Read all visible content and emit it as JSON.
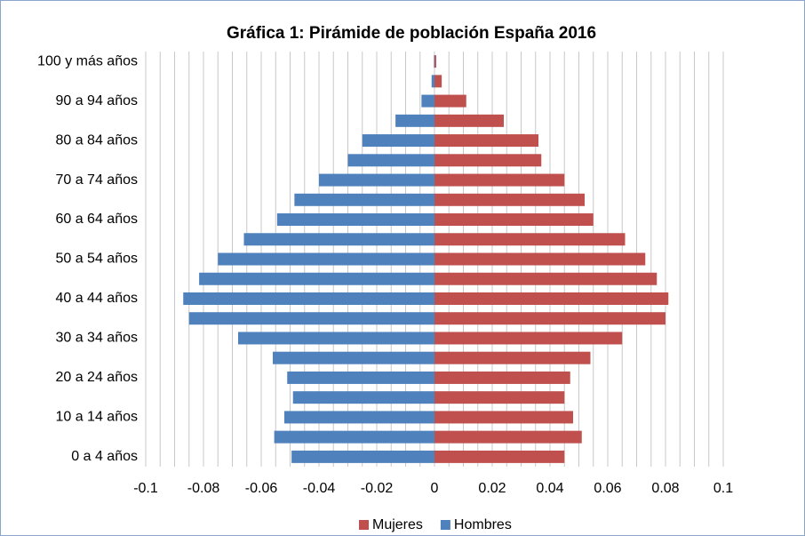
{
  "chart_data": {
    "type": "bar",
    "orientation": "horizontal",
    "title": "Gráfica 1: Pirámide de población España 2016",
    "categories": [
      "0 a 4 años",
      null,
      "10 a 14 años",
      null,
      "20 a 24 años",
      null,
      "30 a 34 años",
      null,
      "40 a 44 años",
      null,
      "50 a 54 años",
      null,
      "60 a 64 años",
      null,
      "70 a 74 años",
      null,
      "80 a 84 años",
      null,
      "90 a 94 años",
      null,
      "100 y más años"
    ],
    "series": [
      {
        "name": "Mujeres",
        "color": "#c0504d",
        "values": [
          0.045,
          0.051,
          0.048,
          0.045,
          0.047,
          0.054,
          0.065,
          0.08,
          0.081,
          0.077,
          0.073,
          0.066,
          0.055,
          0.052,
          0.045,
          0.037,
          0.036,
          0.024,
          0.011,
          0.0025,
          0.0006
        ]
      },
      {
        "name": "Hombres",
        "color": "#4f81bd",
        "values": [
          -0.0495,
          -0.0555,
          -0.052,
          -0.049,
          -0.051,
          -0.056,
          -0.068,
          -0.085,
          -0.087,
          -0.0815,
          -0.075,
          -0.066,
          -0.0545,
          -0.0485,
          -0.04,
          -0.03,
          -0.025,
          -0.0135,
          -0.0045,
          -0.001,
          -0.0002
        ]
      }
    ],
    "xlim": [
      -0.1,
      0.1
    ],
    "xticks": [
      -0.1,
      -0.08,
      -0.06,
      -0.04,
      -0.02,
      0,
      0.02,
      0.04,
      0.06,
      0.08,
      0.1
    ],
    "xgrid": [
      -0.1,
      -0.095,
      -0.09,
      -0.085,
      -0.08,
      -0.075,
      -0.07,
      -0.065,
      -0.06,
      -0.055,
      -0.05,
      -0.045,
      -0.04,
      -0.035,
      -0.03,
      -0.025,
      -0.02,
      -0.015,
      -0.01,
      -0.005,
      0,
      0.005,
      0.01,
      0.015,
      0.02,
      0.025,
      0.03,
      0.035,
      0.04,
      0.045,
      0.05,
      0.055,
      0.06,
      0.065,
      0.07,
      0.075,
      0.08,
      0.085,
      0.09,
      0.095,
      0.1
    ],
    "legend": "bottom"
  }
}
